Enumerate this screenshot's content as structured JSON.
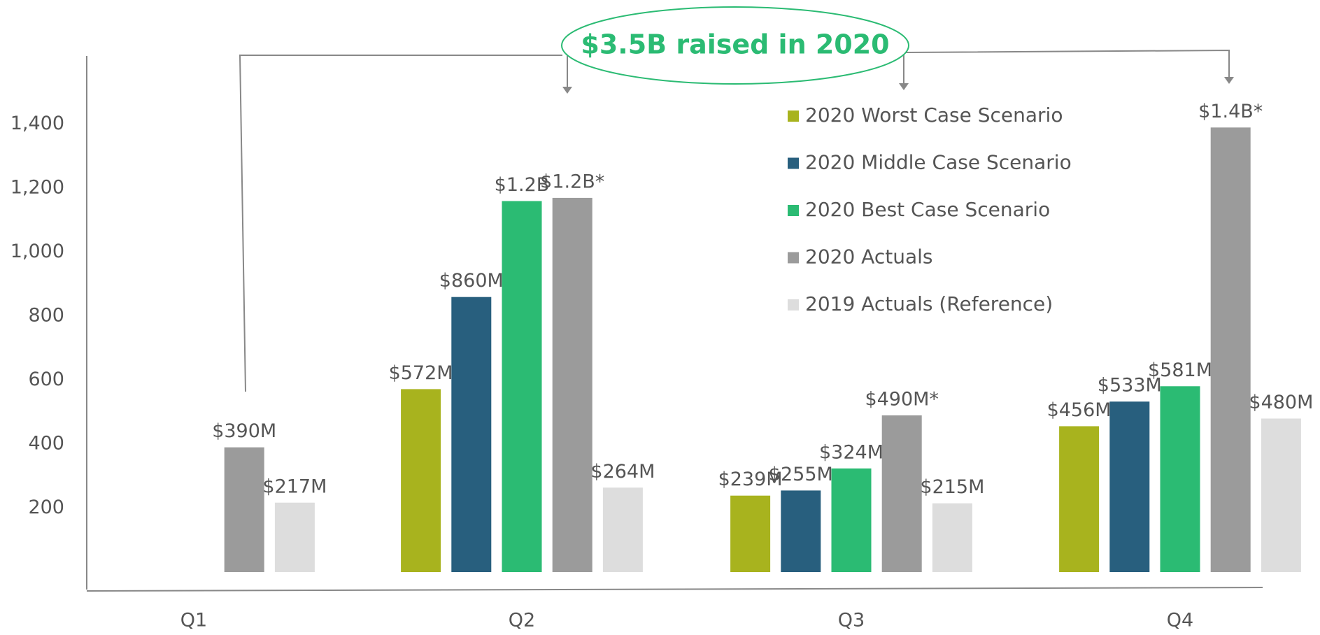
{
  "chart_data": {
    "type": "bar",
    "annotation": "$3.5B raised in 2020",
    "categories": [
      "Q1",
      "Q2",
      "Q3",
      "Q4"
    ],
    "series": [
      {
        "name": "2020 Worst Case Scenario",
        "color": "#a8b31e",
        "values": [
          null,
          572,
          239,
          456
        ],
        "value_labels": [
          null,
          "$572M",
          "$239M",
          "$456M"
        ]
      },
      {
        "name": "2020 Middle Case Scenario",
        "color": "#285f7e",
        "values": [
          null,
          860,
          255,
          533
        ],
        "value_labels": [
          null,
          "$860M",
          "$255M",
          "$533M"
        ]
      },
      {
        "name": "2020 Best Case Scenario",
        "color": "#2bbb73",
        "values": [
          null,
          1160,
          324,
          581
        ],
        "value_labels": [
          null,
          "$1.2B",
          "$324M",
          "$581M"
        ]
      },
      {
        "name": "2020 Actuals",
        "color": "#9b9b9b",
        "values": [
          390,
          1170,
          490,
          1390
        ],
        "value_labels": [
          "$390M",
          "$1.2B*",
          "$490M*",
          "$1.4B*"
        ]
      },
      {
        "name": "2019 Actuals (Reference)",
        "color": "#dddddd",
        "values": [
          217,
          264,
          215,
          480
        ],
        "value_labels": [
          "$217M",
          "$264M",
          "$215M",
          "$480M"
        ]
      }
    ],
    "ylim": [
      0,
      1500
    ],
    "yticks": [
      200,
      400,
      600,
      800,
      {
        "value": 1000,
        "label": "1,000"
      },
      {
        "value": 1200,
        "label": "1,200"
      },
      {
        "value": 1400,
        "label": "1,400"
      }
    ],
    "grid": false,
    "legend": "top-right"
  }
}
